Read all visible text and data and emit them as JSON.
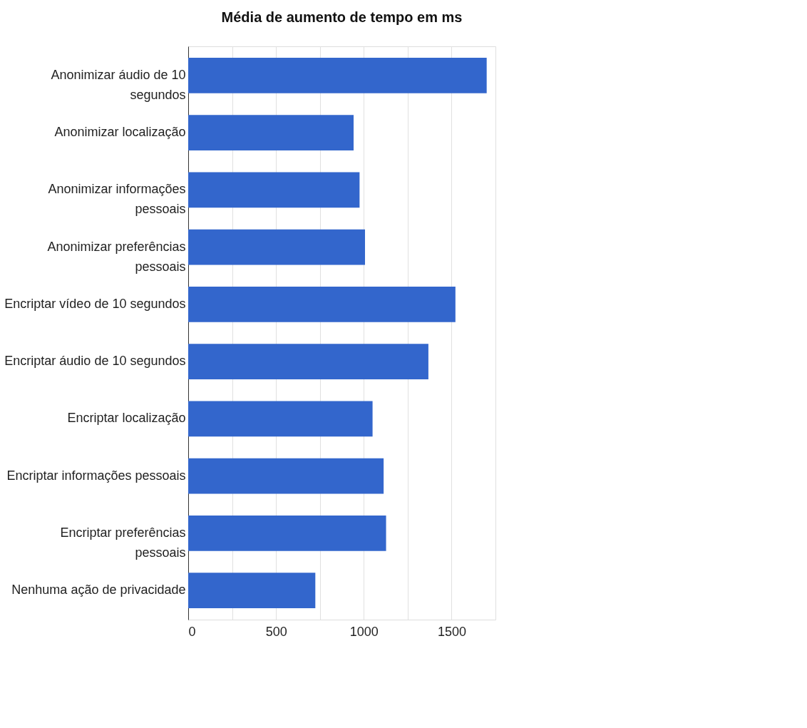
{
  "chart_data": {
    "type": "bar",
    "orientation": "horizontal",
    "title": "Média de aumento de tempo em ms",
    "categories": [
      "Anonimizar áudio de 10 segundos",
      "Anonimizar localização",
      "Anonimizar informações pessoais",
      "Anonimizar preferências pessoais",
      "Encriptar vídeo de 10 segundos",
      "Encriptar áudio de 10 segundos",
      "Encriptar localização",
      "Encriptar informações pessoais",
      "Encriptar preferências pessoais",
      "Nenhuma ação de privacidade"
    ],
    "values": [
      1700,
      942,
      976,
      1007,
      1522,
      1368,
      1050,
      1113,
      1127,
      724
    ],
    "color": "#3366cc",
    "xlim": [
      0,
      1750
    ],
    "xticks": [
      0,
      {
        "value": 250,
        "label": null
      },
      500,
      {
        "value": 750,
        "label": null
      },
      1000,
      {
        "value": 1250,
        "label": null
      },
      1500,
      {
        "value": 1750,
        "label": null
      }
    ],
    "grid": "x"
  }
}
